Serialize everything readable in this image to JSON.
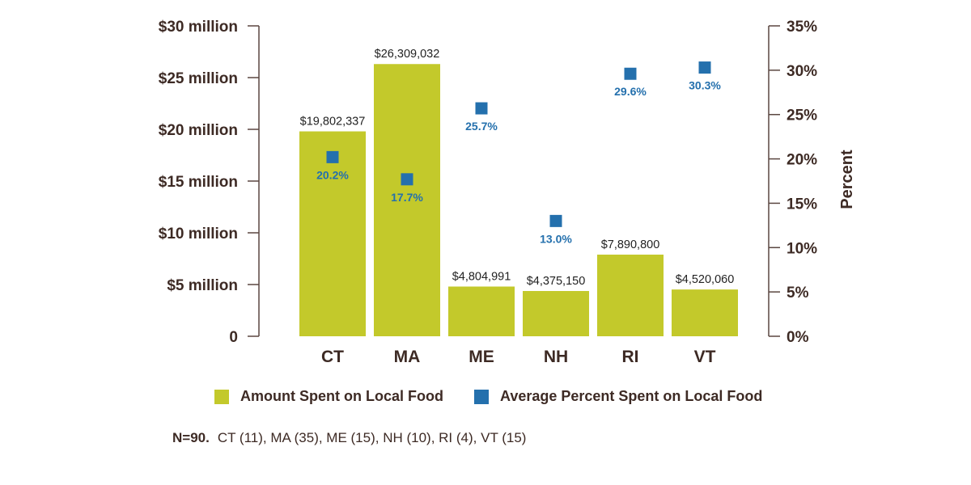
{
  "chart_data": {
    "type": "bar",
    "categories": [
      "CT",
      "MA",
      "ME",
      "NH",
      "RI",
      "VT"
    ],
    "series": [
      {
        "name": "Amount Spent on Local Food",
        "axis": "left",
        "values": [
          19802337,
          26309032,
          4804991,
          4375150,
          7890800,
          4520060
        ],
        "value_labels": [
          "$19,802,337",
          "$26,309,032",
          "$4,804,991",
          "$4,375,150",
          "$7,890,800",
          "$4,520,060"
        ]
      },
      {
        "name": "Average Percent Spent on Local Food",
        "axis": "right",
        "marker": "square",
        "values": [
          20.2,
          17.7,
          25.7,
          13.0,
          29.6,
          30.3
        ],
        "value_labels": [
          "20.2%",
          "17.7%",
          "25.7%",
          "13.0%",
          "29.6%",
          "30.3%"
        ]
      }
    ],
    "left_axis": {
      "range": [
        0,
        30000000
      ],
      "ticks": [
        0,
        5000000,
        10000000,
        15000000,
        20000000,
        25000000,
        30000000
      ],
      "tick_labels": [
        "0",
        "$5 million",
        "$10 million",
        "$15 million",
        "$20 million",
        "$25 million",
        "$30 million"
      ]
    },
    "right_axis": {
      "label": "Percent",
      "range": [
        0,
        35
      ],
      "ticks": [
        0,
        5,
        10,
        15,
        20,
        25,
        30,
        35
      ],
      "tick_labels": [
        "0%",
        "5%",
        "10%",
        "15%",
        "20%",
        "25%",
        "30%",
        "35%"
      ]
    },
    "colors": {
      "bar": "#c3c92b",
      "marker": "#2470ad",
      "axis": "#5a4640",
      "text": "#3d2a24"
    },
    "grid": false,
    "legend_position": "bottom"
  },
  "legend": {
    "items": [
      {
        "label": "Amount Spent on Local Food",
        "color": "#c3c92b"
      },
      {
        "label": "Average Percent Spent on Local Food",
        "color": "#2470ad"
      }
    ]
  },
  "note": {
    "label": "N=90.",
    "text": "CT (11), MA (35), ME (15), NH (10), RI (4), VT (15)"
  }
}
